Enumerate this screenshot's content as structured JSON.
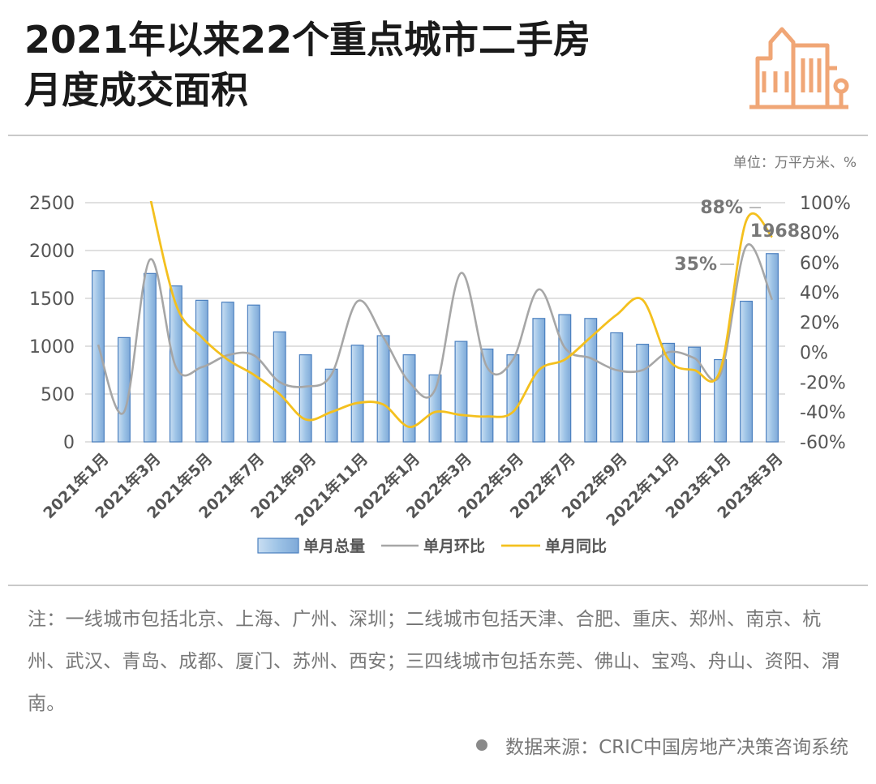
{
  "title": {
    "line1": "2021年以来22个重点城市二手房",
    "line2": "月度成交面积"
  },
  "unit_label": "单位：万平方米、%",
  "note": "注：一线城市包括北京、上海、广州、深圳；二线城市包括天津、合肥、重庆、郑州、南京、杭州、武汉、青岛、成都、厦门、苏州、西安；三四线城市包括东莞、佛山、宝鸡、舟山、资阳、渭南。",
  "source": "数据来源：CRIC中国房地产决策咨询系统",
  "colors": {
    "bar": "#9dc3e6",
    "bar_border": "#4a7fbf",
    "mom_line": "#a6a6a6",
    "yoy_line": "#f4c01e",
    "logo": "#f0a676"
  },
  "chart_data": {
    "type": "bar",
    "x_tick_labels": [
      "2021年1月",
      "2021年3月",
      "2021年5月",
      "2021年7月",
      "2021年9月",
      "2021年11月",
      "2022年1月",
      "2022年3月",
      "2022年5月",
      "2022年7月",
      "2022年9月",
      "2022年11月",
      "2023年1月",
      "2023年3月"
    ],
    "left_axis": {
      "ylim": [
        0,
        2500
      ],
      "ticks": [
        "0",
        "500",
        "1000",
        "1500",
        "2000",
        "2500"
      ]
    },
    "right_axis": {
      "ylim": [
        -60,
        100
      ],
      "ticks": [
        "-60%",
        "-40%",
        "-20%",
        "0%",
        "20%",
        "40%",
        "60%",
        "80%",
        "100%"
      ]
    },
    "grid": true,
    "legend_position": "bottom",
    "series": [
      {
        "name": "单月总量",
        "type": "bar",
        "axis": "left",
        "values": [
          1790,
          1090,
          1760,
          1630,
          1480,
          1460,
          1430,
          1150,
          910,
          760,
          1010,
          1110,
          910,
          700,
          1050,
          970,
          910,
          1290,
          1330,
          1290,
          1140,
          1020,
          1030,
          990,
          860,
          1470,
          1968
        ]
      },
      {
        "name": "单月环比",
        "type": "line",
        "axis": "right",
        "values": [
          5,
          -40,
          62,
          -10,
          -10,
          -2,
          -2,
          -20,
          -23,
          -15,
          34,
          10,
          -20,
          -25,
          53,
          -10,
          -5,
          42,
          3,
          -4,
          -12,
          -12,
          0,
          -4,
          -15,
          71,
          35
        ]
      },
      {
        "name": "单月同比",
        "type": "line",
        "axis": "right",
        "values": [
          null,
          null,
          104,
          32,
          10,
          -5,
          -15,
          -28,
          -45,
          -40,
          -34,
          -35,
          -50,
          -40,
          -42,
          -43,
          -40,
          -12,
          -5,
          10,
          25,
          35,
          -5,
          -12,
          -12,
          88,
          77
        ]
      }
    ],
    "annotations": [
      {
        "text": "88%",
        "series": "单月同比",
        "index": 25
      },
      {
        "text": "1968",
        "series": "单月总量",
        "index": 26
      },
      {
        "text": "35%",
        "series": "单月环比",
        "index": 26
      }
    ]
  }
}
